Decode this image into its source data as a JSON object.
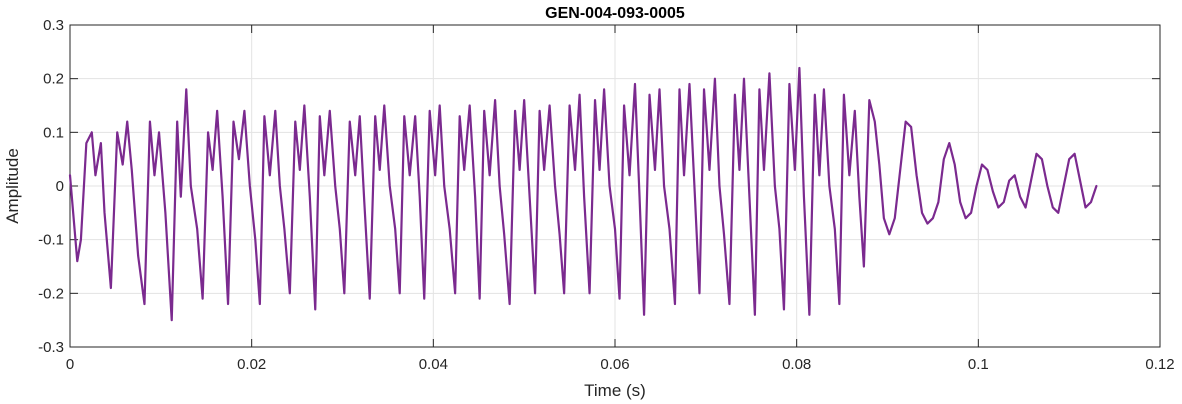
{
  "chart_data": {
    "type": "line",
    "title": "GEN-004-093-0005",
    "xlabel": "Time (s)",
    "ylabel": "Amplitude",
    "xlim": [
      0,
      0.12
    ],
    "ylim": [
      -0.3,
      0.3
    ],
    "xticks": [
      0,
      0.02,
      0.04,
      0.06,
      0.08,
      0.1,
      0.12
    ],
    "xtick_labels": [
      "0",
      "0.02",
      "0.04",
      "0.06",
      "0.08",
      "0.1",
      "0.12"
    ],
    "yticks": [
      -0.3,
      -0.2,
      -0.1,
      0,
      0.1,
      0.2,
      0.3
    ],
    "ytick_labels": [
      "-0.3",
      "-0.2",
      "-0.1",
      "0",
      "0.1",
      "0.2",
      "0.3"
    ],
    "grid": true,
    "series": [
      {
        "color": "#7B2A8F",
        "x": [
          0,
          0.0008,
          0.0012,
          0.0018,
          0.0024,
          0.0028,
          0.0034,
          0.0038,
          0.0045,
          0.0052,
          0.0058,
          0.0063,
          0.0068,
          0.0075,
          0.0082,
          0.0088,
          0.0093,
          0.0098,
          0.0105,
          0.0112,
          0.0118,
          0.0122,
          0.0128,
          0.0133,
          0.014,
          0.0146,
          0.0152,
          0.0157,
          0.0162,
          0.0168,
          0.0174,
          0.018,
          0.0186,
          0.0192,
          0.0198,
          0.0204,
          0.0209,
          0.0214,
          0.022,
          0.0226,
          0.0231,
          0.0236,
          0.0242,
          0.0248,
          0.0253,
          0.0258,
          0.0264,
          0.027,
          0.0275,
          0.028,
          0.0286,
          0.0292,
          0.0297,
          0.0302,
          0.0308,
          0.0314,
          0.0319,
          0.0324,
          0.033,
          0.0336,
          0.0341,
          0.0346,
          0.0352,
          0.0358,
          0.0363,
          0.0368,
          0.0374,
          0.038,
          0.0385,
          0.039,
          0.0396,
          0.0402,
          0.0407,
          0.0412,
          0.0418,
          0.0424,
          0.0429,
          0.0434,
          0.044,
          0.0446,
          0.0451,
          0.0456,
          0.0462,
          0.0468,
          0.0473,
          0.0478,
          0.0484,
          0.049,
          0.0495,
          0.05,
          0.0506,
          0.0512,
          0.0517,
          0.0522,
          0.0528,
          0.0534,
          0.0539,
          0.0544,
          0.055,
          0.0556,
          0.0561,
          0.0566,
          0.0572,
          0.0578,
          0.0583,
          0.0588,
          0.0594,
          0.06,
          0.0605,
          0.061,
          0.0616,
          0.0622,
          0.0627,
          0.0632,
          0.0638,
          0.0644,
          0.0649,
          0.0654,
          0.066,
          0.0666,
          0.0671,
          0.0676,
          0.0682,
          0.0688,
          0.0693,
          0.0698,
          0.0704,
          0.071,
          0.0715,
          0.072,
          0.0726,
          0.0732,
          0.0737,
          0.0742,
          0.0748,
          0.0754,
          0.0759,
          0.0764,
          0.077,
          0.0776,
          0.0781,
          0.0786,
          0.0792,
          0.0798,
          0.0803,
          0.0808,
          0.0814,
          0.082,
          0.0825,
          0.083,
          0.0836,
          0.0842,
          0.0847,
          0.0852,
          0.0858,
          0.0864,
          0.0869,
          0.0874,
          0.088,
          0.0886,
          0.0891,
          0.0896,
          0.0902,
          0.0908,
          0.0914,
          0.092,
          0.0926,
          0.0932,
          0.0938,
          0.0944,
          0.095,
          0.0956,
          0.0962,
          0.0968,
          0.0974,
          0.098,
          0.0986,
          0.0992,
          0.0998,
          0.1004,
          0.101,
          0.1016,
          0.1022,
          0.1028,
          0.1034,
          0.104,
          0.1046,
          0.1052,
          0.1058,
          0.1064,
          0.107,
          0.1076,
          0.1082,
          0.1088,
          0.1094,
          0.11,
          0.1106,
          0.1112,
          0.1118,
          0.1124,
          0.113
        ],
        "y": [
          0.02,
          -0.14,
          -0.1,
          0.08,
          0.1,
          0.02,
          0.08,
          -0.05,
          -0.19,
          0.1,
          0.04,
          0.12,
          0.03,
          -0.13,
          -0.22,
          0.12,
          0.02,
          0.1,
          -0.05,
          -0.25,
          0.12,
          -0.02,
          0.18,
          0.0,
          -0.08,
          -0.21,
          0.1,
          0.03,
          0.14,
          -0.02,
          -0.22,
          0.12,
          0.05,
          0.14,
          0.0,
          -0.1,
          -0.22,
          0.13,
          0.02,
          0.14,
          0.0,
          -0.08,
          -0.2,
          0.12,
          0.03,
          0.15,
          -0.02,
          -0.23,
          0.13,
          0.02,
          0.14,
          0.0,
          -0.08,
          -0.2,
          0.12,
          0.02,
          0.13,
          -0.03,
          -0.21,
          0.13,
          0.03,
          0.15,
          0.0,
          -0.08,
          -0.2,
          0.13,
          0.02,
          0.13,
          -0.02,
          -0.21,
          0.14,
          0.02,
          0.15,
          0.0,
          -0.08,
          -0.2,
          0.13,
          0.03,
          0.15,
          -0.02,
          -0.21,
          0.14,
          0.02,
          0.16,
          0.0,
          -0.09,
          -0.22,
          0.14,
          0.03,
          0.16,
          -0.02,
          -0.2,
          0.14,
          0.03,
          0.15,
          0.0,
          -0.09,
          -0.2,
          0.15,
          0.03,
          0.17,
          -0.02,
          -0.2,
          0.16,
          0.03,
          0.18,
          0.0,
          -0.08,
          -0.21,
          0.15,
          0.02,
          0.19,
          -0.02,
          -0.24,
          0.17,
          0.03,
          0.18,
          0.0,
          -0.08,
          -0.22,
          0.18,
          0.02,
          0.19,
          -0.02,
          -0.2,
          0.18,
          0.03,
          0.2,
          0.0,
          -0.09,
          -0.22,
          0.17,
          0.03,
          0.2,
          -0.02,
          -0.24,
          0.18,
          0.03,
          0.21,
          0.0,
          -0.08,
          -0.23,
          0.19,
          0.03,
          0.22,
          -0.02,
          -0.24,
          0.17,
          0.02,
          0.18,
          0.0,
          -0.08,
          -0.22,
          0.17,
          0.02,
          0.14,
          -0.02,
          -0.15,
          0.16,
          0.12,
          0.04,
          -0.06,
          -0.09,
          -0.06,
          0.03,
          0.12,
          0.11,
          0.02,
          -0.05,
          -0.07,
          -0.06,
          -0.03,
          0.05,
          0.08,
          0.04,
          -0.03,
          -0.06,
          -0.05,
          0.0,
          0.04,
          0.03,
          -0.01,
          -0.04,
          -0.03,
          0.01,
          0.02,
          -0.02,
          -0.04,
          0.01,
          0.06,
          0.05,
          0.0,
          -0.04,
          -0.05,
          0.0,
          0.05,
          0.06,
          0.01,
          -0.04,
          -0.03,
          0.0
        ]
      }
    ]
  }
}
